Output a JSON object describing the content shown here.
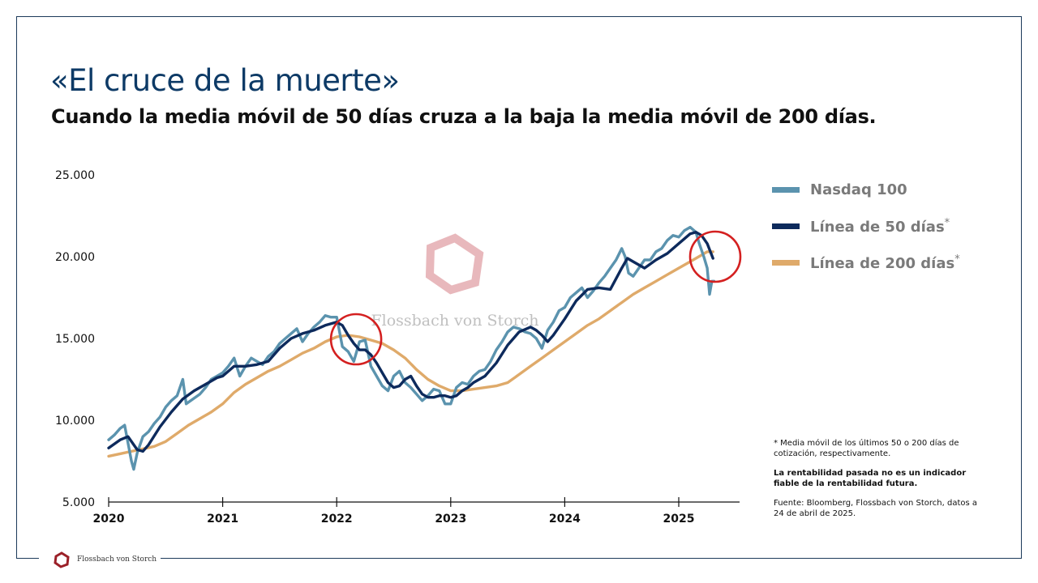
{
  "header": {
    "title": "«El cruce de la muerte»",
    "subtitle": "Cuando la media móvil de 50 días cruza a la baja la media móvil de 200 días."
  },
  "legend": {
    "items": [
      {
        "label": "Nasdaq 100",
        "color": "#5b93ae",
        "suffix": ""
      },
      {
        "label": "Línea de 50 días",
        "color": "#0d2a5c",
        "suffix": "*"
      },
      {
        "label": "Línea de 200 días",
        "color": "#dfaa6a",
        "suffix": "*"
      }
    ]
  },
  "notes": {
    "footnote": "* Media móvil de los últimos 50 o 200 días de cotización, respectivamente.",
    "disclaimer": "La rentabilidad pasada no es un indicador fiable de la rentabilidad futura.",
    "source": "Fuente: Bloomberg, Flossbach von Storch, datos a 24 de abril de 2025."
  },
  "watermark": "Flossbach von Storch",
  "footer": {
    "brand": "Flossbach von Storch"
  },
  "colors": {
    "nasdaq": "#5b93ae",
    "ma50": "#0d2a5c",
    "ma200": "#dfaa6a",
    "highlight": "#d42020",
    "brand": "#0d3a66"
  },
  "chart_data": {
    "type": "line",
    "title": "«El cruce de la muerte»",
    "x_tick_labels": [
      "2020",
      "2021",
      "2022",
      "2023",
      "2024",
      "2025"
    ],
    "y_tick_labels": [
      "5.000",
      "10.000",
      "15.000",
      "20.000",
      "25.000"
    ],
    "x_range": [
      2020.0,
      2025.55
    ],
    "ylim": [
      5000,
      25000
    ],
    "grid": false,
    "legend_position": "right",
    "series": [
      {
        "name": "Nasdaq 100",
        "x": [
          2020.0,
          2020.05,
          2020.1,
          2020.14,
          2020.17,
          2020.2,
          2020.22,
          2020.25,
          2020.3,
          2020.35,
          2020.4,
          2020.45,
          2020.5,
          2020.55,
          2020.6,
          2020.65,
          2020.68,
          2020.72,
          2020.8,
          2020.85,
          2020.9,
          2020.95,
          2021.0,
          2021.05,
          2021.1,
          2021.15,
          2021.2,
          2021.25,
          2021.3,
          2021.35,
          2021.4,
          2021.45,
          2021.5,
          2021.55,
          2021.6,
          2021.65,
          2021.7,
          2021.75,
          2021.8,
          2021.85,
          2021.9,
          2021.95,
          2022.0,
          2022.05,
          2022.1,
          2022.15,
          2022.2,
          2022.25,
          2022.3,
          2022.35,
          2022.4,
          2022.45,
          2022.5,
          2022.55,
          2022.6,
          2022.65,
          2022.7,
          2022.75,
          2022.8,
          2022.85,
          2022.9,
          2022.95,
          2023.0,
          2023.05,
          2023.1,
          2023.15,
          2023.2,
          2023.25,
          2023.3,
          2023.35,
          2023.4,
          2023.45,
          2023.5,
          2023.55,
          2023.6,
          2023.65,
          2023.7,
          2023.75,
          2023.8,
          2023.85,
          2023.9,
          2023.95,
          2024.0,
          2024.05,
          2024.1,
          2024.15,
          2024.2,
          2024.25,
          2024.3,
          2024.35,
          2024.4,
          2024.45,
          2024.5,
          2024.53,
          2024.56,
          2024.6,
          2024.65,
          2024.7,
          2024.75,
          2024.8,
          2024.85,
          2024.9,
          2024.95,
          2025.0,
          2025.05,
          2025.1,
          2025.15,
          2025.18,
          2025.22,
          2025.25,
          2025.27,
          2025.29,
          2025.31
        ],
        "values": [
          8800,
          9100,
          9500,
          9700,
          8600,
          7500,
          7000,
          8000,
          9000,
          9300,
          9800,
          10200,
          10800,
          11200,
          11500,
          12500,
          11000,
          11200,
          11600,
          12000,
          12500,
          12700,
          12900,
          13300,
          13800,
          12700,
          13300,
          13800,
          13600,
          13400,
          13900,
          14200,
          14700,
          15000,
          15300,
          15600,
          14800,
          15300,
          15700,
          16000,
          16400,
          16300,
          16300,
          14500,
          14200,
          13600,
          14800,
          14900,
          13300,
          12700,
          12100,
          11800,
          12700,
          13000,
          12300,
          12000,
          11600,
          11200,
          11500,
          11900,
          11800,
          11000,
          11000,
          12000,
          12300,
          12200,
          12700,
          13000,
          13100,
          13600,
          14300,
          14800,
          15400,
          15700,
          15600,
          15400,
          15300,
          15000,
          14400,
          15500,
          16000,
          16700,
          16900,
          17500,
          17800,
          18100,
          17500,
          17900,
          18400,
          18800,
          19300,
          19800,
          20500,
          20000,
          19000,
          18800,
          19300,
          19800,
          19800,
          20300,
          20500,
          21000,
          21300,
          21200,
          21600,
          21800,
          21500,
          20800,
          20000,
          19300,
          17700,
          18500,
          18500
        ]
      },
      {
        "name": "Línea de 50 días",
        "x": [
          2020.0,
          2020.1,
          2020.17,
          2020.25,
          2020.3,
          2020.35,
          2020.45,
          2020.55,
          2020.65,
          2020.75,
          2020.85,
          2020.95,
          2021.0,
          2021.1,
          2021.2,
          2021.3,
          2021.4,
          2021.5,
          2021.6,
          2021.7,
          2021.8,
          2021.9,
          2022.0,
          2022.05,
          2022.1,
          2022.15,
          2022.2,
          2022.25,
          2022.3,
          2022.35,
          2022.4,
          2022.45,
          2022.5,
          2022.55,
          2022.6,
          2022.65,
          2022.7,
          2022.75,
          2022.8,
          2022.85,
          2022.9,
          2022.95,
          2023.0,
          2023.05,
          2023.1,
          2023.15,
          2023.2,
          2023.3,
          2023.4,
          2023.5,
          2023.6,
          2023.7,
          2023.75,
          2023.8,
          2023.85,
          2023.9,
          2024.0,
          2024.1,
          2024.2,
          2024.3,
          2024.4,
          2024.5,
          2024.55,
          2024.6,
          2024.65,
          2024.7,
          2024.8,
          2024.9,
          2025.0,
          2025.05,
          2025.1,
          2025.15,
          2025.2,
          2025.25,
          2025.3
        ],
        "values": [
          8300,
          8800,
          9000,
          8200,
          8100,
          8500,
          9600,
          10500,
          11300,
          11800,
          12200,
          12600,
          12700,
          13300,
          13300,
          13400,
          13600,
          14400,
          15000,
          15300,
          15500,
          15800,
          16000,
          15800,
          15200,
          14700,
          14300,
          14300,
          14000,
          13500,
          12900,
          12300,
          12000,
          12100,
          12500,
          12700,
          12100,
          11600,
          11400,
          11400,
          11500,
          11500,
          11400,
          11500,
          11800,
          12000,
          12300,
          12700,
          13500,
          14600,
          15400,
          15700,
          15500,
          15200,
          14800,
          15200,
          16200,
          17300,
          18000,
          18100,
          18000,
          19300,
          19900,
          19700,
          19500,
          19300,
          19800,
          20200,
          20800,
          21100,
          21400,
          21500,
          21300,
          20800,
          19900
        ]
      },
      {
        "name": "Línea de 200 días",
        "x": [
          2020.0,
          2020.1,
          2020.2,
          2020.3,
          2020.4,
          2020.5,
          2020.6,
          2020.7,
          2020.8,
          2020.9,
          2021.0,
          2021.1,
          2021.2,
          2021.3,
          2021.4,
          2021.5,
          2021.6,
          2021.7,
          2021.8,
          2021.9,
          2022.0,
          2022.1,
          2022.2,
          2022.3,
          2022.4,
          2022.5,
          2022.6,
          2022.7,
          2022.8,
          2022.9,
          2023.0,
          2023.1,
          2023.2,
          2023.3,
          2023.4,
          2023.5,
          2023.6,
          2023.7,
          2023.8,
          2023.9,
          2024.0,
          2024.1,
          2024.2,
          2024.3,
          2024.4,
          2024.5,
          2024.6,
          2024.7,
          2024.8,
          2024.9,
          2025.0,
          2025.1,
          2025.2,
          2025.25,
          2025.3
        ],
        "values": [
          7800,
          7950,
          8100,
          8250,
          8400,
          8700,
          9200,
          9700,
          10100,
          10500,
          11000,
          11700,
          12200,
          12600,
          13000,
          13300,
          13700,
          14100,
          14400,
          14800,
          15100,
          15200,
          15100,
          14900,
          14700,
          14300,
          13800,
          13100,
          12500,
          12100,
          11800,
          11800,
          11900,
          12000,
          12100,
          12300,
          12800,
          13300,
          13800,
          14300,
          14800,
          15300,
          15800,
          16200,
          16700,
          17200,
          17700,
          18100,
          18500,
          18900,
          19300,
          19700,
          20100,
          20300,
          20300
        ]
      }
    ],
    "annotations": [
      {
        "type": "circle",
        "label": "",
        "x": 2022.17,
        "y": 14950
      },
      {
        "type": "circle",
        "label": "",
        "x": 2025.32,
        "y": 20000
      }
    ]
  }
}
